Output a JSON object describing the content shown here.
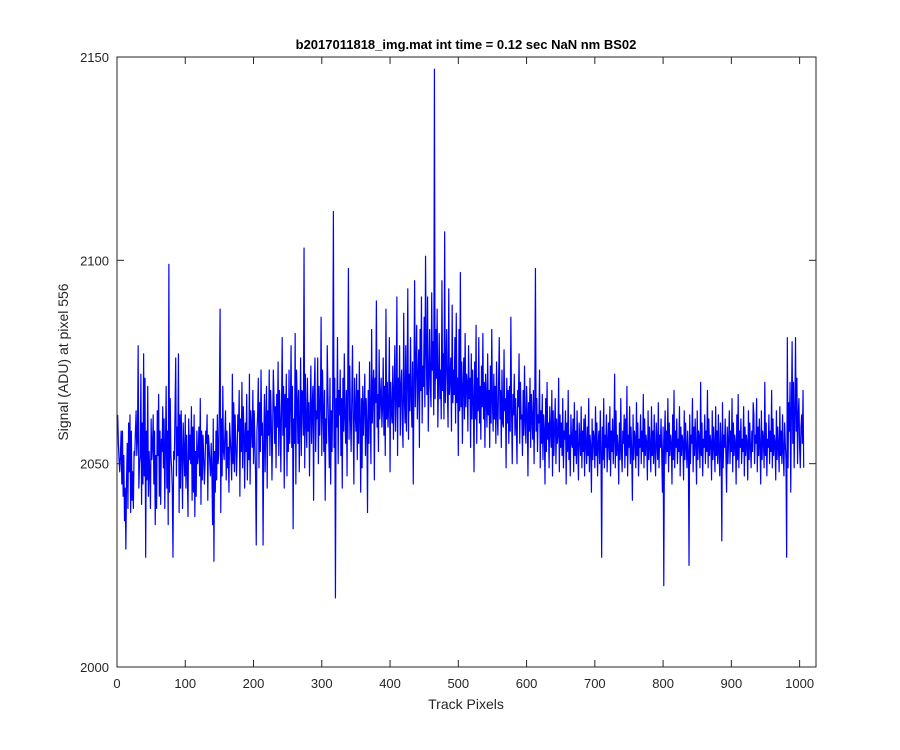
{
  "chart_data": {
    "type": "line",
    "title": "b2017011818_img.mat int time = 0.12 sec  NaN nm BS02",
    "xlabel": "Track Pixels",
    "ylabel": "Signal (ADU) at pixel 556",
    "xlim": [
      0,
      1024
    ],
    "ylim": [
      2000,
      2150
    ],
    "xticks": [
      0,
      100,
      200,
      300,
      400,
      500,
      600,
      700,
      800,
      900,
      1000
    ],
    "yticks": [
      2000,
      2050,
      2100,
      2150
    ],
    "grid": false,
    "series": [
      {
        "color": "#0000ff",
        "x_start": 1,
        "x_step": 1,
        "values": [
          2062,
          2055,
          2051,
          2048,
          2052,
          2058,
          2045,
          2058,
          2042,
          2052,
          2036,
          2044,
          2029,
          2046,
          2055,
          2039,
          2060,
          2048,
          2062,
          2038,
          2058,
          2041,
          2048,
          2039,
          2053,
          2052,
          2058,
          2063,
          2052,
          2056,
          2079,
          2044,
          2050,
          2052,
          2072,
          2040,
          2060,
          2045,
          2077,
          2047,
          2071,
          2027,
          2058,
          2046,
          2069,
          2042,
          2053,
          2048,
          2039,
          2061,
          2051,
          2054,
          2062,
          2045,
          2058,
          2035,
          2052,
          2039,
          2063,
          2052,
          2067,
          2042,
          2058,
          2040,
          2056,
          2053,
          2064,
          2049,
          2061,
          2039,
          2055,
          2069,
          2044,
          2058,
          2035,
          2099,
          2043,
          2066,
          2052,
          2049,
          2044,
          2027,
          2053,
          2051,
          2063,
          2076,
          2047,
          2059,
          2052,
          2077,
          2038,
          2062,
          2044,
          2063,
          2053,
          2039,
          2060,
          2053,
          2047,
          2062,
          2044,
          2057,
          2048,
          2037,
          2061,
          2051,
          2057,
          2050,
          2064,
          2041,
          2059,
          2043,
          2062,
          2037,
          2053,
          2042,
          2058,
          2050,
          2052,
          2059,
          2047,
          2066,
          2040,
          2058,
          2046,
          2057,
          2052,
          2045,
          2050,
          2058,
          2055,
          2062,
          2041,
          2057,
          2054,
          2050,
          2047,
          2055,
          2048,
          2035,
          2061,
          2026,
          2053,
          2043,
          2058,
          2046,
          2062,
          2050,
          2052,
          2065,
          2088,
          2038,
          2061,
          2047,
          2069,
          2053,
          2051,
          2057,
          2063,
          2046,
          2058,
          2049,
          2054,
          2043,
          2060,
          2056,
          2052,
          2046,
          2072,
          2050,
          2065,
          2048,
          2062,
          2055,
          2047,
          2053,
          2062,
          2058,
          2068,
          2042,
          2061,
          2053,
          2070,
          2049,
          2064,
          2057,
          2044,
          2060,
          2053,
          2067,
          2046,
          2058,
          2051,
          2072,
          2045,
          2063,
          2059,
          2054,
          2068,
          2050,
          2063,
          2055,
          2047,
          2030,
          2058,
          2062,
          2071,
          2049,
          2065,
          2053,
          2073,
          2057,
          2060,
          2030,
          2055,
          2067,
          2048,
          2061,
          2069,
          2044,
          2063,
          2057,
          2073,
          2052,
          2068,
          2061,
          2046,
          2058,
          2073,
          2066,
          2055,
          2064,
          2049,
          2067,
          2059,
          2075,
          2052,
          2068,
          2061,
          2048,
          2064,
          2081,
          2057,
          2069,
          2044,
          2067,
          2059,
          2072,
          2047,
          2066,
          2053,
          2073,
          2055,
          2064,
          2079,
          2054,
          2069,
          2034,
          2061,
          2055,
          2082,
          2045,
          2073,
          2066,
          2055,
          2068,
          2048,
          2060,
          2076,
          2052,
          2068,
          2067,
          2057,
          2103,
          2049,
          2072,
          2060,
          2054,
          2071,
          2058,
          2065,
          2047,
          2062,
          2074,
          2055,
          2064,
          2069,
          2041,
          2068,
          2076,
          2053,
          2063,
          2061,
          2076,
          2050,
          2069,
          2057,
          2064,
          2086,
          2052,
          2073,
          2064,
          2053,
          2068,
          2041,
          2061,
          2055,
          2079,
          2067,
          2058,
          2049,
          2071,
          2045,
          2063,
          2053,
          2067,
          2112,
          2054,
          2071,
          2017,
          2066,
          2059,
          2081,
          2050,
          2068,
          2062,
          2073,
          2052,
          2066,
          2044,
          2071,
          2058,
          2077,
          2061,
          2055,
          2068,
          2047,
          2069,
          2098,
          2056,
          2074,
          2061,
          2053,
          2067,
          2079,
          2059,
          2045,
          2071,
          2063,
          2058,
          2072,
          2051,
          2068,
          2055,
          2075,
          2061,
          2043,
          2066,
          2049,
          2069,
          2057,
          2064,
          2072,
          2052,
          2066,
          2060,
          2038,
          2068,
          2055,
          2075,
          2062,
          2050,
          2083,
          2060,
          2069,
          2073,
          2046,
          2071,
          2065,
          2090,
          2059,
          2067,
          2053,
          2078,
          2061,
          2066,
          2071,
          2059,
          2064,
          2076,
          2057,
          2069,
          2052,
          2088,
          2061,
          2070,
          2059,
          2065,
          2081,
          2048,
          2070,
          2063,
          2060,
          2074,
          2056,
          2068,
          2079,
          2058,
          2066,
          2091,
          2052,
          2071,
          2064,
          2079,
          2057,
          2069,
          2073,
          2060,
          2054,
          2087,
          2066,
          2060,
          2079,
          2058,
          2070,
          2093,
          2056,
          2072,
          2063,
          2081,
          2066,
          2059,
          2075,
          2045,
          2070,
          2095,
          2064,
          2074,
          2084,
          2061,
          2071,
          2078,
          2054,
          2083,
          2068,
          2091,
          2060,
          2074,
          2069,
          2086,
          2064,
          2101,
          2078,
          2067,
          2091,
          2058,
          2071,
          2083,
          2069,
          2064,
          2092,
          2073,
          2080,
          2062,
          2147,
          2066,
          2083,
          2071,
          2088,
          2059,
          2070,
          2082,
          2066,
          2073,
          2061,
          2095,
          2068,
          2077,
          2061,
          2107,
          2065,
          2074,
          2083,
          2068,
          2059,
          2093,
          2067,
          2071,
          2076,
          2058,
          2089,
          2065,
          2073,
          2067,
          2081,
          2060,
          2087,
          2065,
          2071,
          2052,
          2083,
          2063,
          2097,
          2064,
          2075,
          2055,
          2069,
          2076,
          2061,
          2082,
          2064,
          2072,
          2070,
          2058,
          2079,
          2066,
          2071,
          2054,
          2077,
          2061,
          2073,
          2066,
          2048,
          2075,
          2061,
          2084,
          2055,
          2071,
          2063,
          2081,
          2060,
          2069,
          2056,
          2074,
          2064,
          2082,
          2061,
          2070,
          2054,
          2072,
          2066,
          2059,
          2077,
          2062,
          2068,
          2054,
          2074,
          2060,
          2083,
          2065,
          2058,
          2072,
          2061,
          2069,
          2055,
          2075,
          2062,
          2057,
          2070,
          2081,
          2061,
          2068,
          2054,
          2073,
          2060,
          2059,
          2078,
          2063,
          2066,
          2049,
          2071,
          2060,
          2068,
          2055,
          2069,
          2058,
          2086,
          2063,
          2050,
          2067,
          2062,
          2072,
          2057,
          2066,
          2059,
          2050,
          2068,
          2064,
          2077,
          2055,
          2070,
          2061,
          2062,
          2052,
          2068,
          2057,
          2074,
          2060,
          2055,
          2069,
          2063,
          2047,
          2065,
          2058,
          2071,
          2054,
          2067,
          2061,
          2056,
          2068,
          2050,
          2064,
          2098,
          2058,
          2066,
          2053,
          2062,
          2060,
          2073,
          2049,
          2063,
          2055,
          2067,
          2051,
          2062,
          2058,
          2045,
          2066,
          2053,
          2070,
          2056,
          2060,
          2049,
          2064,
          2058,
          2054,
          2068,
          2047,
          2063,
          2052,
          2059,
          2066,
          2050,
          2061,
          2055,
          2057,
          2071,
          2048,
          2062,
          2054,
          2060,
          2052,
          2066,
          2049,
          2058,
          2056,
          2063,
          2045,
          2060,
          2053,
          2068,
          2051,
          2057,
          2047,
          2062,
          2055,
          2054,
          2061,
          2048,
          2065,
          2052,
          2058,
          2050,
          2063,
          2054,
          2046,
          2060,
          2056,
          2052,
          2064,
          2049,
          2058,
          2053,
          2061,
          2047,
          2062,
          2055,
          2050,
          2059,
          2052,
          2066,
          2048,
          2057,
          2054,
          2043,
          2061,
          2051,
          2058,
          2056,
          2049,
          2064,
          2052,
          2060,
          2047,
          2055,
          2058,
          2050,
          2063,
          2053,
          2027,
          2059,
          2051,
          2066,
          2049,
          2057,
          2054,
          2062,
          2048,
          2055,
          2060,
          2051,
          2064,
          2047,
          2058,
          2053,
          2061,
          2050,
          2056,
          2072,
          2049,
          2063,
          2052,
          2057,
          2054,
          2045,
          2060,
          2051,
          2066,
          2053,
          2048,
          2058,
          2055,
          2062,
          2049,
          2061,
          2052,
          2069,
          2047,
          2057,
          2054,
          2064,
          2050,
          2059,
          2053,
          2041,
          2062,
          2051,
          2058,
          2056,
          2049,
          2065,
          2052,
          2060,
          2047,
          2056,
          2054,
          2062,
          2050,
          2058,
          2053,
          2067,
          2049,
          2061,
          2052,
          2057,
          2055,
          2046,
          2063,
          2051,
          2059,
          2054,
          2048,
          2064,
          2052,
          2058,
          2050,
          2062,
          2053,
          2047,
          2060,
          2055,
          2051,
          2065,
          2049,
          2057,
          2054,
          2061,
          2052,
          2043,
          2059,
          2020,
          2056,
          2063,
          2050,
          2058,
          2053,
          2066,
          2048,
          2060,
          2052,
          2057,
          2055,
          2045,
          2062,
          2051,
          2068,
          2049,
          2058,
          2054,
          2061,
          2050,
          2056,
          2053,
          2064,
          2047,
          2059,
          2052,
          2057,
          2055,
          2046,
          2063,
          2051,
          2060,
          2054,
          2049,
          2058,
          2053,
          2025,
          2062,
          2050,
          2057,
          2055,
          2066,
          2048,
          2059,
          2052,
          2061,
          2054,
          2045,
          2063,
          2051,
          2058,
          2056,
          2049,
          2070,
          2052,
          2060,
          2047,
          2056,
          2054,
          2062,
          2050,
          2058,
          2053,
          2068,
          2049,
          2061,
          2052,
          2057,
          2055,
          2046,
          2063,
          2051,
          2059,
          2054,
          2048,
          2064,
          2052,
          2058,
          2050,
          2062,
          2053,
          2047,
          2060,
          2055,
          2031,
          2065,
          2049,
          2057,
          2054,
          2061,
          2052,
          2043,
          2059,
          2050,
          2056,
          2063,
          2050,
          2058,
          2053,
          2066,
          2048,
          2060,
          2052,
          2057,
          2055,
          2045,
          2062,
          2051,
          2067,
          2049,
          2058,
          2054,
          2061,
          2050,
          2056,
          2053,
          2064,
          2047,
          2059,
          2052,
          2057,
          2055,
          2046,
          2063,
          2051,
          2060,
          2054,
          2049,
          2058,
          2053,
          2065,
          2062,
          2050,
          2057,
          2055,
          2066,
          2048,
          2059,
          2052,
          2061,
          2054,
          2045,
          2063,
          2051,
          2058,
          2056,
          2049,
          2070,
          2052,
          2060,
          2047,
          2056,
          2054,
          2062,
          2050,
          2058,
          2053,
          2068,
          2049,
          2061,
          2052,
          2057,
          2055,
          2046,
          2063,
          2051,
          2059,
          2054,
          2048,
          2064,
          2052,
          2058,
          2050,
          2062,
          2053,
          2047,
          2060,
          2055,
          2051,
          2027,
          2081,
          2049,
          2065,
          2058,
          2070,
          2043,
          2063,
          2080,
          2055,
          2070,
          2049,
          2062,
          2081,
          2058,
          2071,
          2050,
          2062,
          2066,
          2054,
          2049,
          2059,
          2062,
          2055,
          2068,
          2049
        ]
      }
    ]
  }
}
